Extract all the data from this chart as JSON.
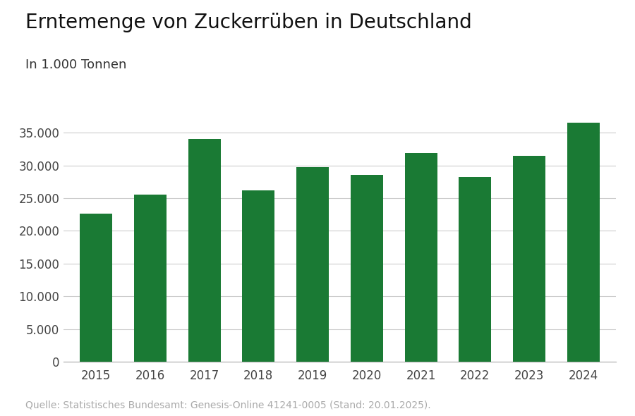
{
  "title": "Erntemenge von Zuckerrüben in Deutschland",
  "subtitle": "In 1.000 Tonnen",
  "source": "Quelle: Statistisches Bundesamt: Genesis-Online 41241-0005 (Stand: 20.01.2025).",
  "years": [
    2015,
    2016,
    2017,
    2018,
    2019,
    2020,
    2021,
    2022,
    2023,
    2024
  ],
  "values": [
    22600,
    25500,
    34000,
    26200,
    29700,
    28600,
    31900,
    28200,
    31500,
    36500
  ],
  "bar_color": "#1a7a34",
  "background_color": "#ffffff",
  "ylim": [
    0,
    40000
  ],
  "yticks": [
    0,
    5000,
    10000,
    15000,
    20000,
    25000,
    30000,
    35000
  ],
  "grid_color": "#cccccc",
  "title_fontsize": 20,
  "subtitle_fontsize": 13,
  "tick_fontsize": 12,
  "source_fontsize": 10
}
